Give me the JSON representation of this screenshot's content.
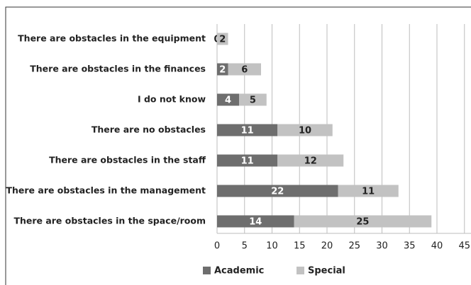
{
  "chart_data": {
    "type": "stacked_bar_horizontal",
    "categories": [
      "There are obstacles in the equipment",
      "There are obstacles in the finances",
      "I do not know",
      "There are no obstacles",
      "There are obstacles in the staff",
      "There are obstacles in the management",
      "There are obstacles in the space/room"
    ],
    "series": [
      {
        "name": "Academic",
        "color": "#6e6e6e",
        "values": [
          0,
          2,
          4,
          11,
          11,
          22,
          14
        ]
      },
      {
        "name": "Special",
        "color": "#c2c2c2",
        "values": [
          2,
          6,
          5,
          10,
          12,
          11,
          25
        ]
      }
    ],
    "xlim": [
      0,
      45
    ],
    "xticks": [
      0,
      5,
      10,
      15,
      20,
      25,
      30,
      35,
      40,
      45
    ],
    "grid": true,
    "legend": "bottom"
  }
}
